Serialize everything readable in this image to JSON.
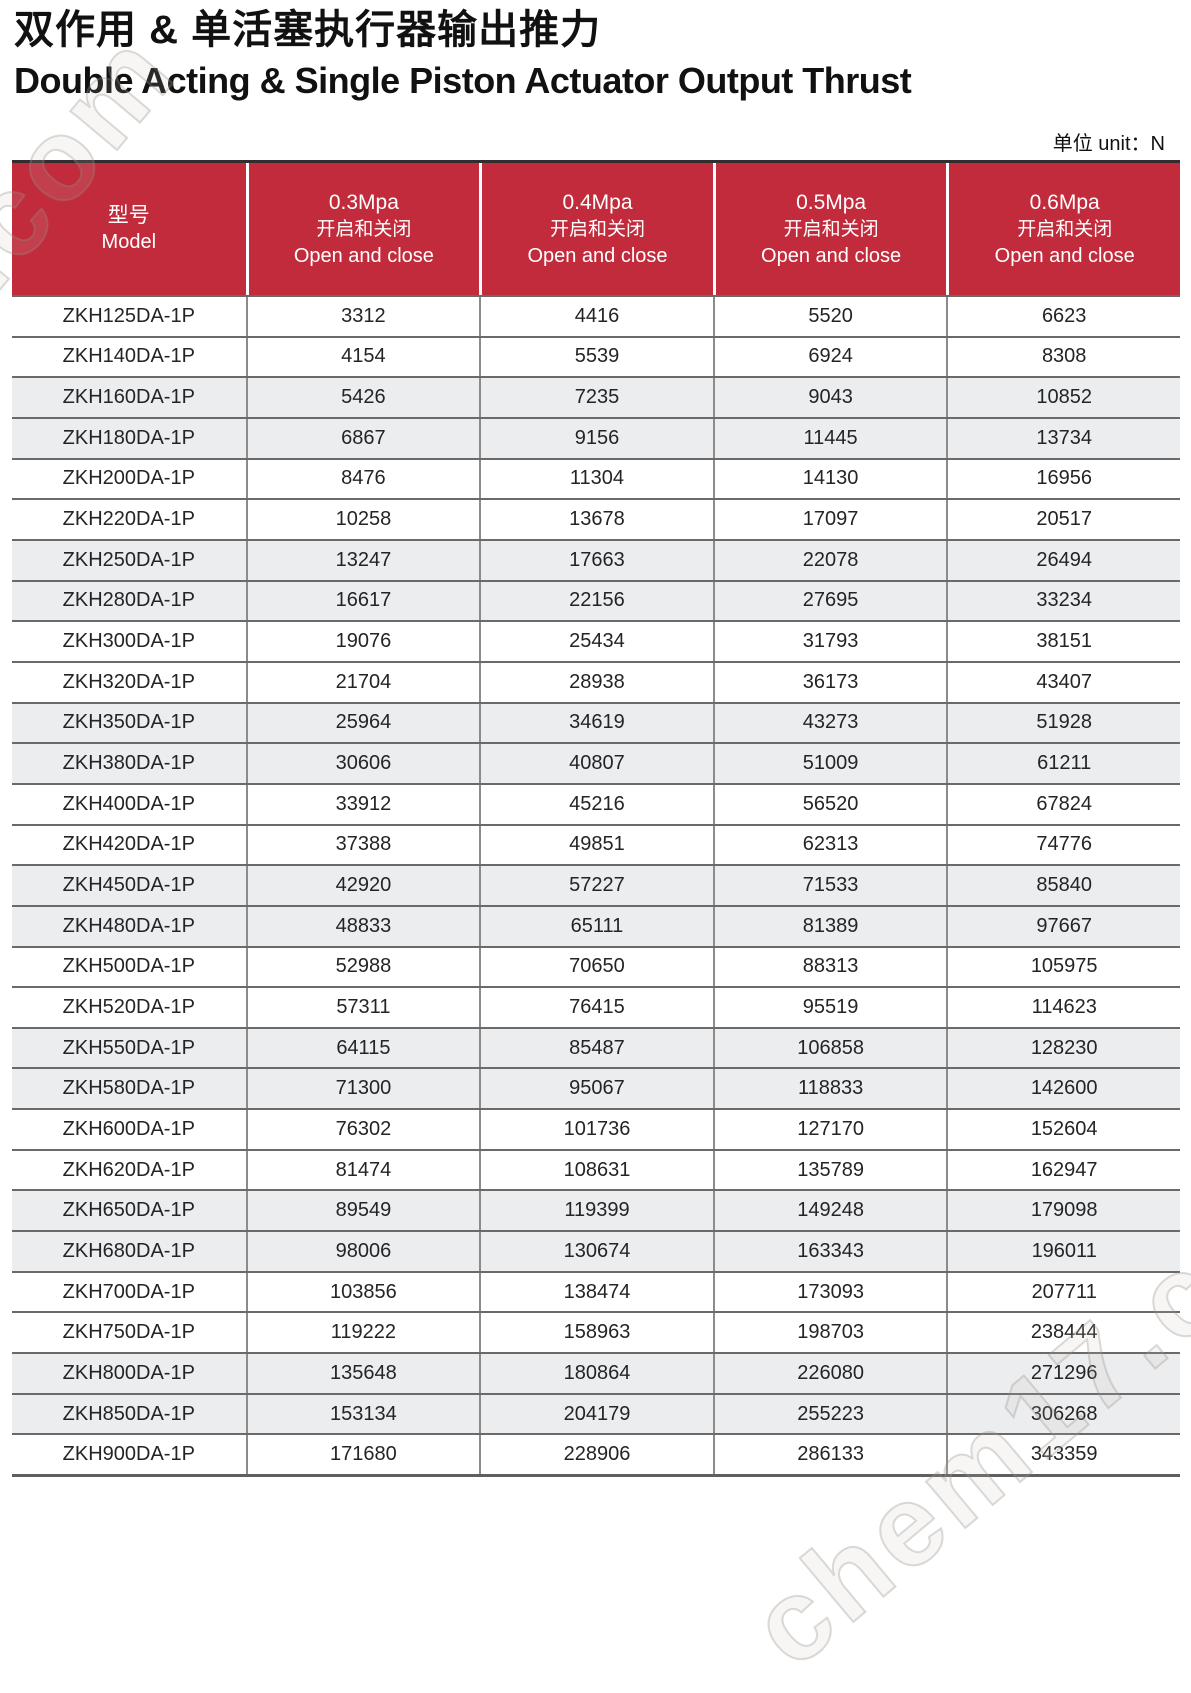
{
  "page": {
    "title_cn": "双作用 & 单活塞执行器输出推力",
    "title_en": "Double Acting & Single Piston Actuator Output Thrust",
    "unit_note": "单位 unit：N"
  },
  "watermark": {
    "text": "chem17.com"
  },
  "colors": {
    "header_red": "#C22B3C",
    "zebra_gray": "#ECEDEF",
    "row_line": "#6a6a6a",
    "column_line": "#8b8b8b"
  },
  "table": {
    "model_header": {
      "cn": "型号",
      "en": "Model"
    },
    "pressure_columns": [
      {
        "pressure": "0.3Mpa",
        "subtitle_cn": "开启和关闭",
        "subtitle_en": "Open and close"
      },
      {
        "pressure": "0.4Mpa",
        "subtitle_cn": "开启和关闭",
        "subtitle_en": "Open and close"
      },
      {
        "pressure": "0.5Mpa",
        "subtitle_cn": "开启和关闭",
        "subtitle_en": "Open and close"
      },
      {
        "pressure": "0.6Mpa",
        "subtitle_cn": "开启和关闭",
        "subtitle_en": "Open and close"
      }
    ],
    "rows": [
      {
        "model": "ZKH125DA-1P",
        "values": [
          3312,
          4416,
          5520,
          6623
        ]
      },
      {
        "model": "ZKH140DA-1P",
        "values": [
          4154,
          5539,
          6924,
          8308
        ]
      },
      {
        "model": "ZKH160DA-1P",
        "values": [
          5426,
          7235,
          9043,
          10852
        ]
      },
      {
        "model": "ZKH180DA-1P",
        "values": [
          6867,
          9156,
          11445,
          13734
        ]
      },
      {
        "model": "ZKH200DA-1P",
        "values": [
          8476,
          11304,
          14130,
          16956
        ]
      },
      {
        "model": "ZKH220DA-1P",
        "values": [
          10258,
          13678,
          17097,
          20517
        ]
      },
      {
        "model": "ZKH250DA-1P",
        "values": [
          13247,
          17663,
          22078,
          26494
        ]
      },
      {
        "model": "ZKH280DA-1P",
        "values": [
          16617,
          22156,
          27695,
          33234
        ]
      },
      {
        "model": "ZKH300DA-1P",
        "values": [
          19076,
          25434,
          31793,
          38151
        ]
      },
      {
        "model": "ZKH320DA-1P",
        "values": [
          21704,
          28938,
          36173,
          43407
        ]
      },
      {
        "model": "ZKH350DA-1P",
        "values": [
          25964,
          34619,
          43273,
          51928
        ]
      },
      {
        "model": "ZKH380DA-1P",
        "values": [
          30606,
          40807,
          51009,
          61211
        ]
      },
      {
        "model": "ZKH400DA-1P",
        "values": [
          33912,
          45216,
          56520,
          67824
        ]
      },
      {
        "model": "ZKH420DA-1P",
        "values": [
          37388,
          49851,
          62313,
          74776
        ]
      },
      {
        "model": "ZKH450DA-1P",
        "values": [
          42920,
          57227,
          71533,
          85840
        ]
      },
      {
        "model": "ZKH480DA-1P",
        "values": [
          48833,
          65111,
          81389,
          97667
        ]
      },
      {
        "model": "ZKH500DA-1P",
        "values": [
          52988,
          70650,
          88313,
          105975
        ]
      },
      {
        "model": "ZKH520DA-1P",
        "values": [
          57311,
          76415,
          95519,
          114623
        ]
      },
      {
        "model": "ZKH550DA-1P",
        "values": [
          64115,
          85487,
          106858,
          128230
        ]
      },
      {
        "model": "ZKH580DA-1P",
        "values": [
          71300,
          95067,
          118833,
          142600
        ]
      },
      {
        "model": "ZKH600DA-1P",
        "values": [
          76302,
          101736,
          127170,
          152604
        ]
      },
      {
        "model": "ZKH620DA-1P",
        "values": [
          81474,
          108631,
          135789,
          162947
        ]
      },
      {
        "model": "ZKH650DA-1P",
        "values": [
          89549,
          119399,
          149248,
          179098
        ]
      },
      {
        "model": "ZKH680DA-1P",
        "values": [
          98006,
          130674,
          163343,
          196011
        ]
      },
      {
        "model": "ZKH700DA-1P",
        "values": [
          103856,
          138474,
          173093,
          207711
        ]
      },
      {
        "model": "ZKH750DA-1P",
        "values": [
          119222,
          158963,
          198703,
          238444
        ]
      },
      {
        "model": "ZKH800DA-1P",
        "values": [
          135648,
          180864,
          226080,
          271296
        ]
      },
      {
        "model": "ZKH850DA-1P",
        "values": [
          153134,
          204179,
          255223,
          306268
        ]
      },
      {
        "model": "ZKH900DA-1P",
        "values": [
          171680,
          228906,
          286133,
          343359
        ]
      }
    ]
  }
}
